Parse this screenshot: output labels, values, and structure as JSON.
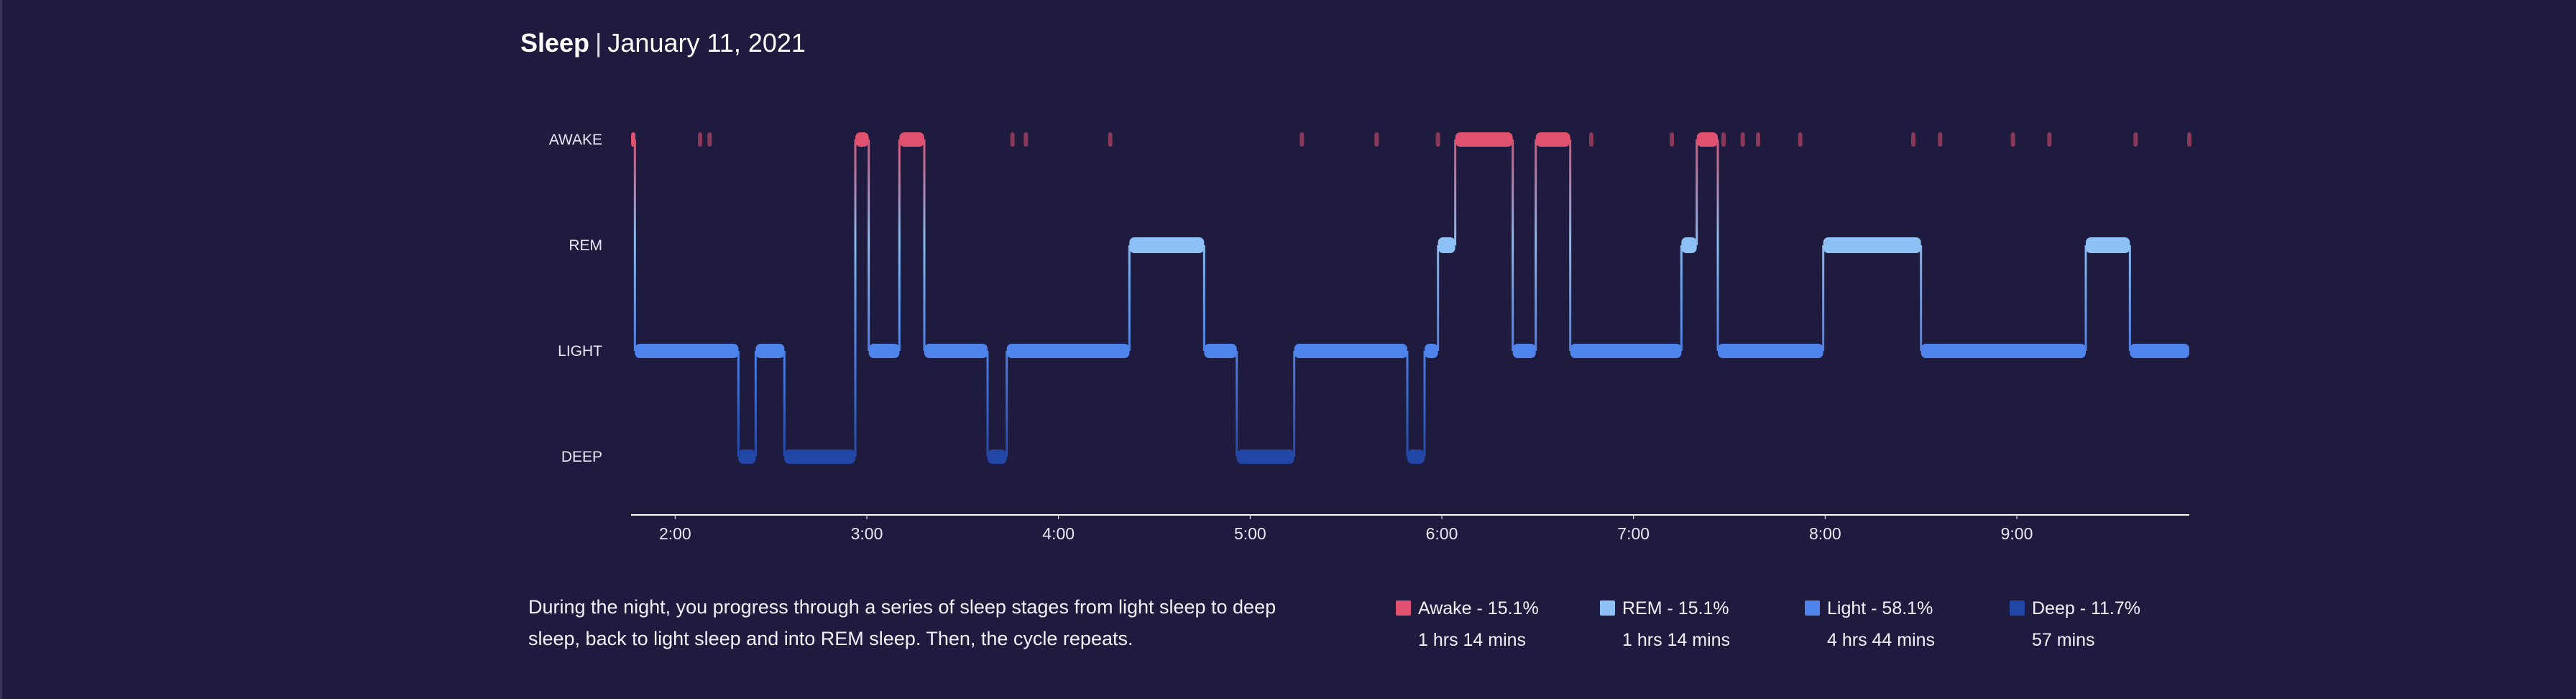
{
  "header": {
    "title": "Sleep",
    "separator": "|",
    "date": "January 11, 2021"
  },
  "description": "During the night, you progress through a series of sleep stages from light sleep to deep sleep, back to light sleep and into REM sleep. Then, the cycle repeats.",
  "colors": {
    "background": "#1f1b3e",
    "awake": "#e0506f",
    "rem": "#8ec2f7",
    "light": "#4f84ec",
    "deep": "#2146a6",
    "axis": "#ffffff"
  },
  "legend": [
    {
      "label": "Awake - 15.1%",
      "duration": "1 hrs 14 mins",
      "color": "#e0506f"
    },
    {
      "label": "REM - 15.1%",
      "duration": "1 hrs 14 mins",
      "color": "#8ec2f7"
    },
    {
      "label": "Light - 58.1%",
      "duration": "4 hrs 44 mins",
      "color": "#4f84ec"
    },
    {
      "label": "Deep - 11.7%",
      "duration": "57 mins",
      "color": "#2146a6"
    }
  ],
  "chart_data": {
    "type": "area",
    "title": "Sleep",
    "subtitle": "January 11, 2021",
    "x_unit": "hours",
    "x_range": [
      1.77,
      9.9
    ],
    "x_ticks": [
      {
        "value": 2,
        "label": "2:00"
      },
      {
        "value": 3,
        "label": "3:00"
      },
      {
        "value": 4,
        "label": "4:00"
      },
      {
        "value": 5,
        "label": "5:00"
      },
      {
        "value": 6,
        "label": "6:00"
      },
      {
        "value": 7,
        "label": "7:00"
      },
      {
        "value": 8,
        "label": "8:00"
      },
      {
        "value": 9,
        "label": "9:00"
      }
    ],
    "stages": [
      {
        "key": "awake",
        "label": "AWAKE"
      },
      {
        "key": "rem",
        "label": "REM"
      },
      {
        "key": "light",
        "label": "LIGHT"
      },
      {
        "key": "deep",
        "label": "DEEP"
      }
    ],
    "segments": [
      {
        "stage": "awake",
        "start": 1.77,
        "end": 1.79
      },
      {
        "stage": "light",
        "start": 1.79,
        "end": 2.33
      },
      {
        "stage": "deep",
        "start": 2.33,
        "end": 2.42
      },
      {
        "stage": "light",
        "start": 2.42,
        "end": 2.57
      },
      {
        "stage": "deep",
        "start": 2.57,
        "end": 2.94
      },
      {
        "stage": "awake",
        "start": 2.94,
        "end": 3.01
      },
      {
        "stage": "light",
        "start": 3.01,
        "end": 3.17
      },
      {
        "stage": "awake",
        "start": 3.17,
        "end": 3.3
      },
      {
        "stage": "light",
        "start": 3.3,
        "end": 3.63
      },
      {
        "stage": "deep",
        "start": 3.63,
        "end": 3.73
      },
      {
        "stage": "light",
        "start": 3.73,
        "end": 4.37
      },
      {
        "stage": "rem",
        "start": 4.37,
        "end": 4.76
      },
      {
        "stage": "light",
        "start": 4.76,
        "end": 4.93
      },
      {
        "stage": "deep",
        "start": 4.93,
        "end": 5.23
      },
      {
        "stage": "light",
        "start": 5.23,
        "end": 5.82
      },
      {
        "stage": "deep",
        "start": 5.82,
        "end": 5.91
      },
      {
        "stage": "light",
        "start": 5.91,
        "end": 5.98
      },
      {
        "stage": "rem",
        "start": 5.98,
        "end": 6.07
      },
      {
        "stage": "awake",
        "start": 6.07,
        "end": 6.37
      },
      {
        "stage": "light",
        "start": 6.37,
        "end": 6.49
      },
      {
        "stage": "awake",
        "start": 6.49,
        "end": 6.67
      },
      {
        "stage": "light",
        "start": 6.67,
        "end": 7.25
      },
      {
        "stage": "rem",
        "start": 7.25,
        "end": 7.33
      },
      {
        "stage": "awake",
        "start": 7.33,
        "end": 7.44
      },
      {
        "stage": "light",
        "start": 7.44,
        "end": 7.99
      },
      {
        "stage": "rem",
        "start": 7.99,
        "end": 8.5
      },
      {
        "stage": "light",
        "start": 8.5,
        "end": 9.36
      },
      {
        "stage": "rem",
        "start": 9.36,
        "end": 9.59
      },
      {
        "stage": "light",
        "start": 9.59,
        "end": 9.9
      }
    ],
    "awake_blips": [
      2.13,
      2.18,
      3.76,
      3.83,
      4.27,
      5.27,
      5.66,
      5.98,
      6.78,
      7.2,
      7.47,
      7.57,
      7.65,
      7.87,
      8.46,
      8.6,
      8.98,
      9.17,
      9.62,
      9.9
    ]
  }
}
